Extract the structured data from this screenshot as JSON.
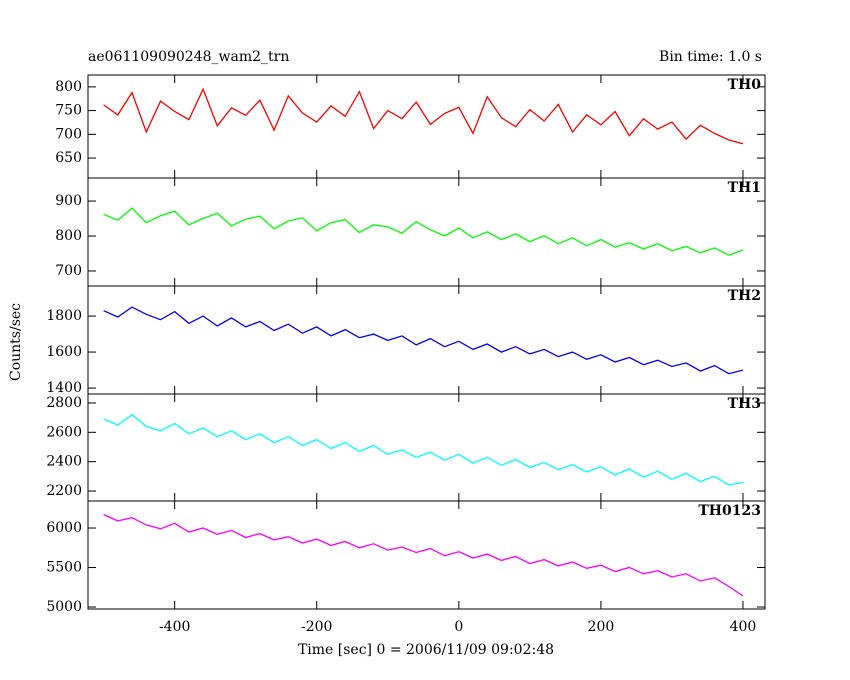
{
  "title": "ae061109090248_wam2_trn",
  "bin_time": "Bin time: 1.0 s",
  "ylabel": "Counts/sec",
  "xlabel": "Time [sec] 0 = 2006/11/09 09:02:48",
  "chart_data": [
    {
      "type": "line",
      "label": "TH0",
      "color": "#ff0000",
      "xlim": [
        -522,
        431
      ],
      "ylim": [
        608,
        825
      ],
      "yticks": [
        650,
        700,
        750,
        800
      ],
      "x": [
        -500,
        -480,
        -460,
        -440,
        -420,
        -400,
        -380,
        -360,
        -340,
        -320,
        -300,
        -280,
        -260,
        -240,
        -220,
        -200,
        -180,
        -160,
        -140,
        -120,
        -100,
        -80,
        -60,
        -40,
        -20,
        0,
        20,
        40,
        60,
        80,
        100,
        120,
        140,
        160,
        180,
        200,
        220,
        240,
        260,
        280,
        300,
        320,
        340,
        360,
        380,
        400
      ],
      "values": [
        762,
        741,
        788,
        705,
        770,
        748,
        731,
        795,
        718,
        756,
        740,
        772,
        709,
        781,
        745,
        726,
        760,
        738,
        790,
        712,
        750,
        733,
        768,
        721,
        744,
        757,
        702,
        779,
        735,
        716,
        752,
        728,
        763,
        705,
        741,
        720,
        748,
        697,
        733,
        711,
        726,
        690,
        719,
        702,
        688,
        680
      ]
    },
    {
      "type": "line",
      "label": "TH1",
      "color": "#00ff00",
      "xlim": [
        -522,
        431
      ],
      "ylim": [
        657,
        966
      ],
      "yticks": [
        700,
        800,
        900
      ],
      "x": [
        -500,
        -480,
        -460,
        -440,
        -420,
        -400,
        -380,
        -360,
        -340,
        -320,
        -300,
        -280,
        -260,
        -240,
        -220,
        -200,
        -180,
        -160,
        -140,
        -120,
        -100,
        -80,
        -60,
        -40,
        -20,
        0,
        20,
        40,
        60,
        80,
        100,
        120,
        140,
        160,
        180,
        200,
        220,
        240,
        260,
        280,
        300,
        320,
        340,
        360,
        380,
        400
      ],
      "values": [
        862,
        845,
        880,
        838,
        858,
        871,
        832,
        850,
        865,
        829,
        848,
        857,
        821,
        843,
        852,
        815,
        838,
        847,
        810,
        832,
        826,
        808,
        841,
        818,
        800,
        823,
        795,
        812,
        790,
        806,
        784,
        801,
        778,
        795,
        772,
        790,
        768,
        781,
        763,
        778,
        758,
        770,
        752,
        766,
        745,
        760
      ]
    },
    {
      "type": "line",
      "label": "TH2",
      "color": "#0000ff",
      "xlim": [
        -522,
        431
      ],
      "ylim": [
        1367,
        1967
      ],
      "yticks": [
        1400,
        1600,
        1800
      ],
      "x": [
        -500,
        -480,
        -460,
        -440,
        -420,
        -400,
        -380,
        -360,
        -340,
        -320,
        -300,
        -280,
        -260,
        -240,
        -220,
        -200,
        -180,
        -160,
        -140,
        -120,
        -100,
        -80,
        -60,
        -40,
        -20,
        0,
        20,
        40,
        60,
        80,
        100,
        120,
        140,
        160,
        180,
        200,
        220,
        240,
        260,
        280,
        300,
        320,
        340,
        360,
        380,
        400
      ],
      "values": [
        1830,
        1795,
        1850,
        1810,
        1780,
        1825,
        1760,
        1800,
        1745,
        1790,
        1740,
        1770,
        1720,
        1755,
        1705,
        1740,
        1690,
        1725,
        1680,
        1700,
        1665,
        1690,
        1640,
        1675,
        1630,
        1660,
        1615,
        1645,
        1600,
        1630,
        1590,
        1615,
        1575,
        1600,
        1560,
        1585,
        1545,
        1570,
        1530,
        1555,
        1520,
        1540,
        1495,
        1525,
        1480,
        1500
      ]
    },
    {
      "type": "line",
      "label": "TH3",
      "color": "#00ffff",
      "xlim": [
        -522,
        431
      ],
      "ylim": [
        2132,
        2861
      ],
      "yticks": [
        2200,
        2400,
        2600,
        2800
      ],
      "x": [
        -500,
        -480,
        -460,
        -440,
        -420,
        -400,
        -380,
        -360,
        -340,
        -320,
        -300,
        -280,
        -260,
        -240,
        -220,
        -200,
        -180,
        -160,
        -140,
        -120,
        -100,
        -80,
        -60,
        -40,
        -20,
        0,
        20,
        40,
        60,
        80,
        100,
        120,
        140,
        160,
        180,
        200,
        220,
        240,
        260,
        280,
        300,
        320,
        340,
        360,
        380,
        400
      ],
      "values": [
        2690,
        2650,
        2720,
        2640,
        2610,
        2660,
        2590,
        2630,
        2570,
        2610,
        2550,
        2590,
        2530,
        2570,
        2510,
        2550,
        2490,
        2530,
        2470,
        2510,
        2450,
        2480,
        2430,
        2465,
        2410,
        2450,
        2390,
        2430,
        2375,
        2415,
        2360,
        2395,
        2345,
        2380,
        2330,
        2365,
        2310,
        2350,
        2295,
        2335,
        2280,
        2320,
        2265,
        2300,
        2240,
        2260
      ]
    },
    {
      "type": "line",
      "label": "TH0123",
      "color": "#ff00ff",
      "xlim": [
        -522,
        431
      ],
      "ylim": [
        4975,
        6342
      ],
      "yticks": [
        5000,
        5500,
        6000
      ],
      "xticks": [
        -400,
        -200,
        0,
        200,
        400
      ],
      "x": [
        -500,
        -480,
        -460,
        -440,
        -420,
        -400,
        -380,
        -360,
        -340,
        -320,
        -300,
        -280,
        -260,
        -240,
        -220,
        -200,
        -180,
        -160,
        -140,
        -120,
        -100,
        -80,
        -60,
        -40,
        -20,
        0,
        20,
        40,
        60,
        80,
        100,
        120,
        140,
        160,
        180,
        200,
        220,
        240,
        260,
        280,
        300,
        320,
        340,
        360,
        380,
        400
      ],
      "values": [
        6170,
        6090,
        6130,
        6040,
        5990,
        6060,
        5950,
        6000,
        5920,
        5970,
        5880,
        5930,
        5850,
        5890,
        5810,
        5860,
        5780,
        5830,
        5750,
        5800,
        5720,
        5760,
        5690,
        5740,
        5650,
        5700,
        5620,
        5670,
        5590,
        5640,
        5550,
        5600,
        5520,
        5570,
        5490,
        5530,
        5450,
        5500,
        5420,
        5460,
        5380,
        5420,
        5330,
        5370,
        5260,
        5140
      ]
    }
  ]
}
